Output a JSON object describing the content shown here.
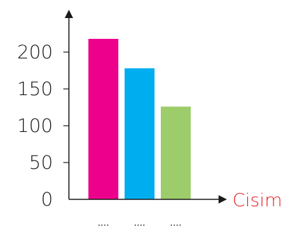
{
  "chart_data": {
    "type": "bar",
    "categories": [
      "....",
      "....",
      "...."
    ],
    "values": [
      218,
      178,
      126
    ],
    "colors": [
      "#ec008c",
      "#00aeef",
      "#9dcd6a"
    ],
    "xlabel": "Cisim",
    "ylabel": "",
    "ylim": [
      0,
      200
    ],
    "yticks": [
      0,
      50,
      100,
      150,
      200
    ],
    "grid": false,
    "axis_color": "#1a1a1a",
    "xlabel_color": "#e31e24",
    "tick_label_color": "#1a1a1a"
  }
}
